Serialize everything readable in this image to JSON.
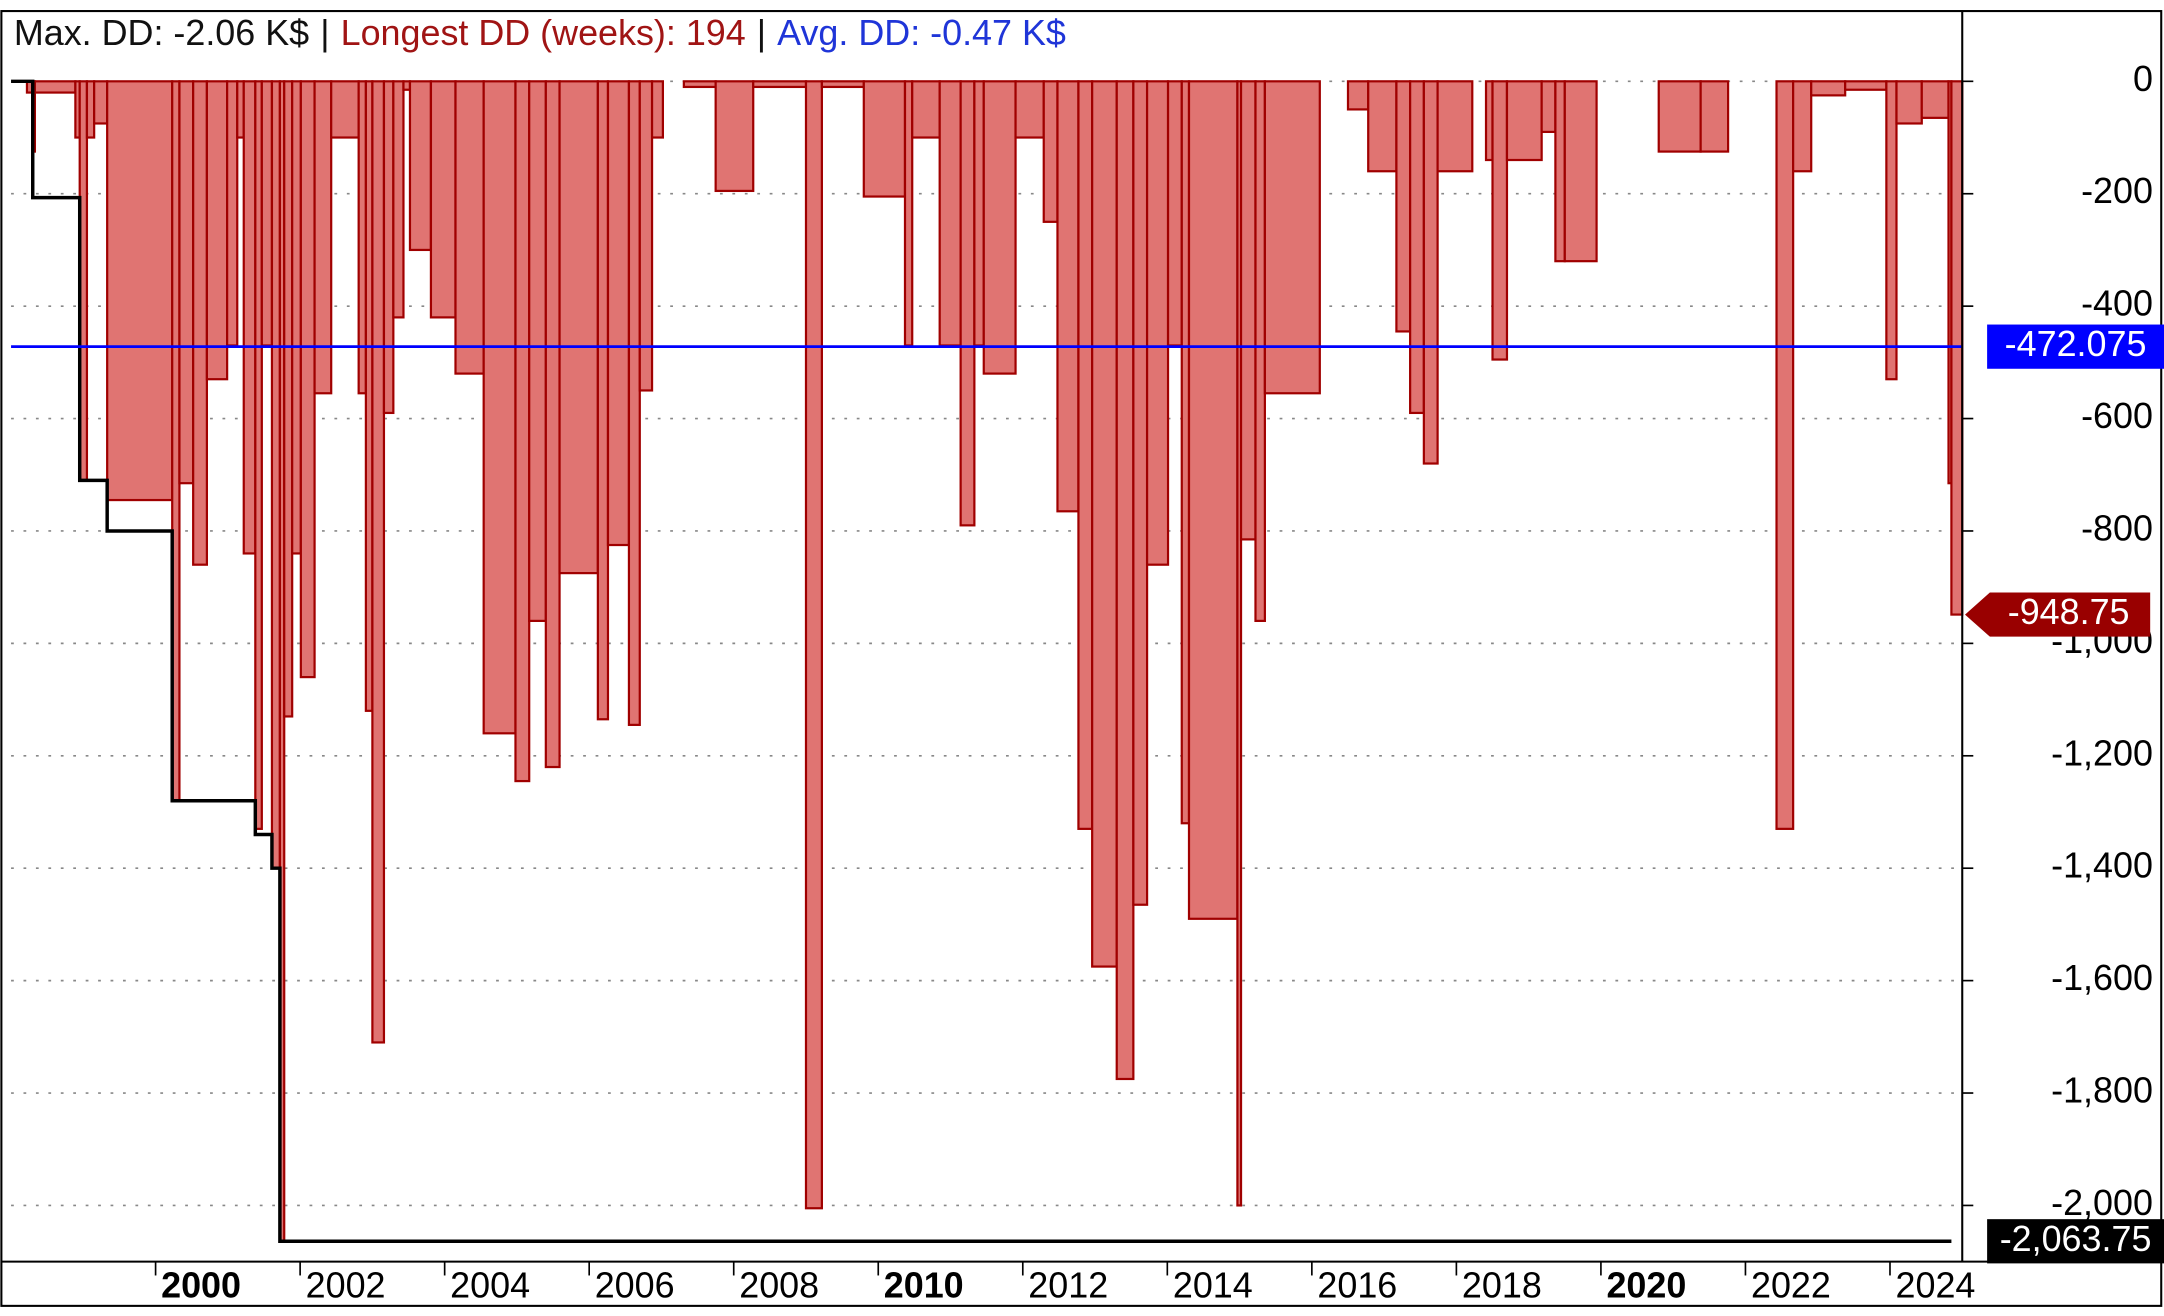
{
  "chart_data": {
    "type": "area",
    "title_parts": [
      {
        "text": "Max. DD: -2.06 K$",
        "color": "#111111"
      },
      {
        "text": "Longest DD (weeks): 194",
        "color": "#a01414"
      },
      {
        "text": "Avg. DD: -0.47 K$",
        "color": "#1f35d8"
      }
    ],
    "title_separator": "|",
    "xlim": [
      1998,
      2025
    ],
    "xticks": [
      2000,
      2002,
      2004,
      2006,
      2008,
      2010,
      2012,
      2014,
      2016,
      2018,
      2020,
      2022,
      2024
    ],
    "bold_xticks": [
      2000,
      2010,
      2020
    ],
    "ylim": [
      -2100,
      125
    ],
    "yticks": [
      0,
      -200,
      -400,
      -600,
      -800,
      {
        "value": -1000,
        "label": "-1,000"
      },
      {
        "value": -1200,
        "label": "-1,200"
      },
      {
        "value": -1400,
        "label": "-1,400"
      },
      {
        "value": -1600,
        "label": "-1,600"
      },
      {
        "value": -1800,
        "label": "-1,800"
      },
      {
        "value": -2000,
        "label": "-2,000"
      }
    ],
    "grid": true,
    "drawdown": {
      "color": "#e07472",
      "edge_color": "#a00000",
      "x": [
        1998.0,
        1998.22,
        1998.3,
        1998.33,
        1998.89,
        1998.95,
        1999.05,
        1999.15,
        1999.33,
        2000.23,
        2000.33,
        2000.52,
        2000.71,
        2000.99,
        2001.13,
        2001.22,
        2001.38,
        2001.47,
        2001.61,
        2001.72,
        2001.78,
        2001.89,
        2002.01,
        2002.2,
        2002.43,
        2002.81,
        2002.91,
        2003.0,
        2003.16,
        2003.29,
        2003.43,
        2003.52,
        2003.81,
        2004.15,
        2004.54,
        2004.98,
        2005.17,
        2005.4,
        2005.59,
        2006.12,
        2006.26,
        2006.55,
        2006.7,
        2006.87,
        2007.02,
        2007.31,
        2007.75,
        2008.27,
        2009.0,
        2009.22,
        2009.8,
        2010.37,
        2010.47,
        2010.85,
        2011.14,
        2011.33,
        2011.46,
        2011.9,
        2012.29,
        2012.48,
        2012.77,
        2012.96,
        2013.3,
        2013.53,
        2013.72,
        2014.01,
        2014.2,
        2014.3,
        2014.97,
        2015.02,
        2015.22,
        2015.35,
        2016.11,
        2016.5,
        2016.78,
        2017.17,
        2017.36,
        2017.55,
        2017.74,
        2018.22,
        2018.41,
        2018.5,
        2018.7,
        2019.18,
        2019.37,
        2019.5,
        2019.94,
        2020.8,
        2021.38,
        2021.76,
        2022.43,
        2022.66,
        2022.91,
        2023.38,
        2023.95,
        2024.09,
        2024.44,
        2024.81,
        2024.85
      ],
      "values": [
        0,
        -20,
        -125,
        -20,
        -100,
        -710,
        -100,
        -75,
        -745,
        -1280,
        -715,
        -860,
        -530,
        -470,
        -100,
        -840,
        -1330,
        -470,
        -1400,
        -2063.75,
        -1130,
        -840,
        -1060,
        -555,
        -100,
        -555,
        -1120,
        -1710,
        -590,
        -420,
        -15,
        -300,
        -420,
        -520,
        -1160,
        -1245,
        -960,
        -1220,
        -875,
        -1135,
        -825,
        -1145,
        -550,
        -100,
        0,
        -10,
        -195,
        -10,
        -2005,
        -10,
        -205,
        -470,
        -100,
        -470,
        -790,
        -470,
        -520,
        -100,
        -250,
        -765,
        -1330,
        -1575,
        -1775,
        -1465,
        -860,
        -470,
        -1320,
        -1490,
        -2000,
        -815,
        -960,
        -555,
        0,
        -50,
        -160,
        -445,
        -590,
        -680,
        -160,
        0,
        -140,
        -495,
        -140,
        -90,
        -320,
        -320,
        0,
        -125,
        -125,
        0,
        -1330,
        -160,
        -25,
        -15,
        -530,
        -75,
        -65,
        -715,
        -948.75
      ]
    },
    "max_drawdown": {
      "color": "#000000",
      "x": [
        1998.0,
        1998.3,
        1998.3,
        1998.95,
        1998.95,
        1999.33,
        1999.33,
        2000.23,
        2000.23,
        2001.38,
        2001.38,
        2001.61,
        2001.61,
        2001.72,
        2001.72,
        2024.85
      ],
      "values": [
        0,
        0,
        -207,
        -207,
        -710,
        -710,
        -800,
        -800,
        -1280,
        -1280,
        -1340,
        -1340,
        -1400,
        -1400,
        -2063.75,
        -2063.75
      ]
    },
    "markers": [
      {
        "value": -472.075,
        "color": "#0000ff",
        "line": true
      },
      {
        "value": -948.75,
        "color": "#990000",
        "arrow": true
      },
      {
        "value": -2063.75,
        "label": "-2,063.75",
        "color": "#000000"
      }
    ]
  }
}
